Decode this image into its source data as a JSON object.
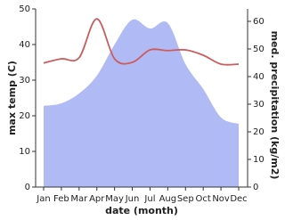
{
  "chart_data": {
    "type": "line",
    "xlabel": "date (month)",
    "ylabel": "max temp (C)",
    "y2label": "med. precipitation (kg/m2)",
    "categories": [
      "Jan",
      "Feb",
      "Mar",
      "Apr",
      "May",
      "Jun",
      "Jul",
      "Aug",
      "Sep",
      "Oct",
      "Nov",
      "Dec"
    ],
    "series": [
      {
        "name": "max temp",
        "color": "#cd5c5c",
        "values": [
          34.8,
          36,
          36.3,
          47.2,
          36,
          35,
          38.5,
          38.3,
          38.5,
          37,
          34.5,
          34.5
        ]
      },
      {
        "name": "med. precipitation",
        "color": "#b0bbf5",
        "axis": "y2",
        "fill": true,
        "values": [
          29.4,
          30.3,
          33.9,
          40.3,
          51.6,
          60.6,
          57.4,
          59.4,
          44.5,
          35.5,
          25.2,
          22.9
        ]
      }
    ],
    "ylim": [
      0,
      50
    ],
    "yticks": [
      0,
      10,
      20,
      30,
      40,
      50
    ],
    "y2lim": [
      0,
      64.5
    ],
    "y2ticks": [
      0,
      10,
      20,
      30,
      40,
      50,
      60
    ]
  }
}
